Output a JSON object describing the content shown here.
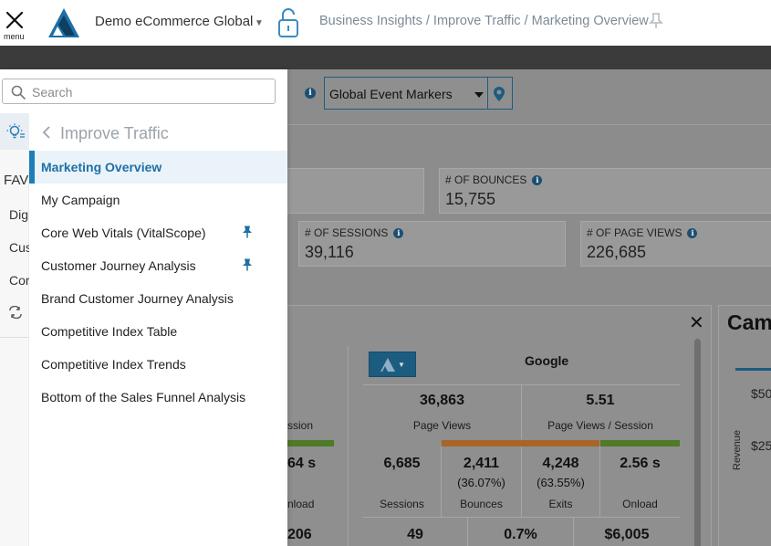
{
  "header": {
    "menu_label": "menu",
    "org_name": "Demo eCommerce Global",
    "breadcrumb": "Business Insights / Improve Traffic / Marketing Overview",
    "icons": [
      "close-icon",
      "logo-icon",
      "chevron-down-icon",
      "lock-icon",
      "pin-icon"
    ]
  },
  "event_markers": {
    "selected": "Global Event Markers"
  },
  "kpis": [
    {
      "label": "# OF BOUNCES",
      "value": "15,755"
    },
    {
      "label": "# OF SESSIONS",
      "value": "39,116"
    },
    {
      "label": "# OF PAGE VIEWS",
      "value": "226,685"
    }
  ],
  "panel": {
    "source_title": "Google",
    "page_views_value": "36,863",
    "page_views_label": "Page Views",
    "pvps_value": "5.51",
    "pvps_label": "Page Views / Session",
    "partial_left_session": "ssion",
    "partial_left_seconds": "64 s",
    "partial_left_onload": "nload",
    "partial_left_bottom": "206",
    "metrics": [
      {
        "value": "6,685",
        "sub": "",
        "label": "Sessions"
      },
      {
        "value": "2,411",
        "sub": "(36.07%)",
        "label": "Bounces"
      },
      {
        "value": "4,248",
        "sub": "(63.55%)",
        "label": "Exits"
      },
      {
        "value": "2.56 s",
        "sub": "",
        "label": "Onload"
      }
    ],
    "bottom_row": [
      "49",
      "0.7%",
      "$6,005"
    ]
  },
  "right_card": {
    "title": "Cam",
    "ticks": [
      "$50",
      "$25"
    ],
    "axis_label": "Revenue"
  },
  "drawer": {
    "search_placeholder": "Search",
    "rail": {
      "fav": "FAV",
      "items": [
        "Digi",
        "Cus",
        "Cor"
      ]
    },
    "back_label": "Improve Traffic",
    "items": [
      {
        "label": "Marketing Overview",
        "active": true,
        "pinned": false
      },
      {
        "label": "My Campaign",
        "active": false,
        "pinned": false
      },
      {
        "label": "Core Web Vitals (VitalScope)",
        "active": false,
        "pinned": true
      },
      {
        "label": "Customer Journey Analysis",
        "active": false,
        "pinned": true
      },
      {
        "label": "Brand Customer Journey Analysis",
        "active": false,
        "pinned": false
      },
      {
        "label": "Competitive Index Table",
        "active": false,
        "pinned": false
      },
      {
        "label": "Competitive Index Trends",
        "active": false,
        "pinned": false
      },
      {
        "label": "Bottom of the Sales Funnel Analysis",
        "active": false,
        "pinned": false
      }
    ]
  },
  "colors": {
    "accent": "#1d7fb8",
    "active_bg": "#eaf3f9",
    "dark_bar": "#3b3b3b",
    "overlay": "#8c8c8c",
    "bar_green": "#4f7a27",
    "bar_orange": "#a8652a"
  }
}
